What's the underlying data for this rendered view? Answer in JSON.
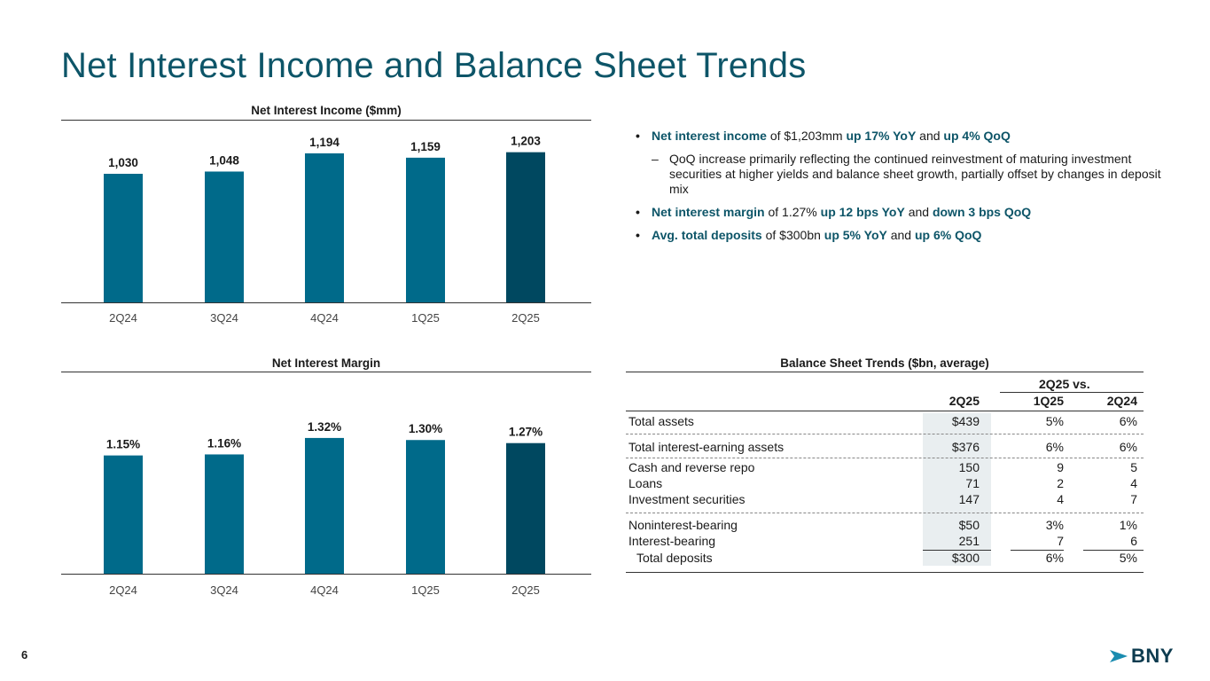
{
  "page": {
    "title": "Net Interest Income and Balance Sheet Trends",
    "page_number": "6",
    "logo_text": "BNY"
  },
  "colors": {
    "title": "#0d5568",
    "bar": "#006a8a",
    "bar_last": "#004860",
    "highlight": "#0d5568",
    "shade": "#e9eef0"
  },
  "chart_data": [
    {
      "type": "bar",
      "title": "Net Interest Income ($mm)",
      "categories": [
        "2Q24",
        "3Q24",
        "4Q24",
        "1Q25",
        "2Q25"
      ],
      "values": [
        1030,
        1048,
        1194,
        1159,
        1203
      ],
      "value_labels": [
        "1,030",
        "1,048",
        "1,194",
        "1,159",
        "1,203"
      ],
      "xlabel": "",
      "ylabel": "",
      "ylim": [
        0,
        1300
      ],
      "grid": false,
      "highlight_last": true
    },
    {
      "type": "bar",
      "title": "Net Interest Margin",
      "categories": [
        "2Q24",
        "3Q24",
        "4Q24",
        "1Q25",
        "2Q25"
      ],
      "values": [
        1.15,
        1.16,
        1.32,
        1.3,
        1.27
      ],
      "value_labels": [
        "1.15%",
        "1.16%",
        "1.32%",
        "1.30%",
        "1.27%"
      ],
      "xlabel": "",
      "ylabel": "",
      "ylim": [
        0,
        1.44
      ],
      "grid": false,
      "highlight_last": true
    }
  ],
  "bullets": [
    {
      "parts": [
        {
          "text": "Net interest income",
          "hl": true
        },
        {
          "text": " of $1,203mm ",
          "hl": false
        },
        {
          "text": "up 17% YoY",
          "hl": true
        },
        {
          "text": " and ",
          "hl": false
        },
        {
          "text": "up 4% QoQ",
          "hl": true
        }
      ],
      "sub": "QoQ increase primarily reflecting the continued reinvestment of maturing investment securities at higher yields and balance sheet growth, partially offset by changes in deposit mix"
    },
    {
      "parts": [
        {
          "text": "Net interest margin",
          "hl": true
        },
        {
          "text": " of 1.27% ",
          "hl": false
        },
        {
          "text": "up 12 bps YoY",
          "hl": true
        },
        {
          "text": " and ",
          "hl": false
        },
        {
          "text": "down 3 bps QoQ",
          "hl": true
        }
      ]
    },
    {
      "parts": [
        {
          "text": "Avg. total deposits",
          "hl": true
        },
        {
          "text": " of $300bn ",
          "hl": false
        },
        {
          "text": "up 5% YoY",
          "hl": true
        },
        {
          "text": " and ",
          "hl": false
        },
        {
          "text": "up 6% QoQ",
          "hl": true
        }
      ]
    }
  ],
  "balance_sheet": {
    "title": "Balance Sheet Trends ($bn, average)",
    "group_header": "2Q25 vs.",
    "columns": [
      "2Q25",
      "1Q25",
      "2Q24"
    ],
    "rows": [
      {
        "label": "Total assets",
        "v": [
          "$439",
          "5%",
          "6%"
        ]
      },
      {
        "label": "Total interest-earning assets",
        "v": [
          "$376",
          "6%",
          "6%"
        ]
      },
      {
        "label": "Cash and reverse repo",
        "v": [
          "150",
          "9",
          "5"
        ]
      },
      {
        "label": "Loans",
        "v": [
          "71",
          "2",
          "4"
        ]
      },
      {
        "label": "Investment securities",
        "v": [
          "147",
          "4",
          "7"
        ]
      },
      {
        "label": "Noninterest-bearing",
        "v": [
          "$50",
          "3%",
          "1%"
        ]
      },
      {
        "label": "Interest-bearing",
        "v": [
          "251",
          "7",
          "6"
        ]
      },
      {
        "label": "Total deposits",
        "v": [
          "$300",
          "6%",
          "5%"
        ]
      }
    ]
  }
}
